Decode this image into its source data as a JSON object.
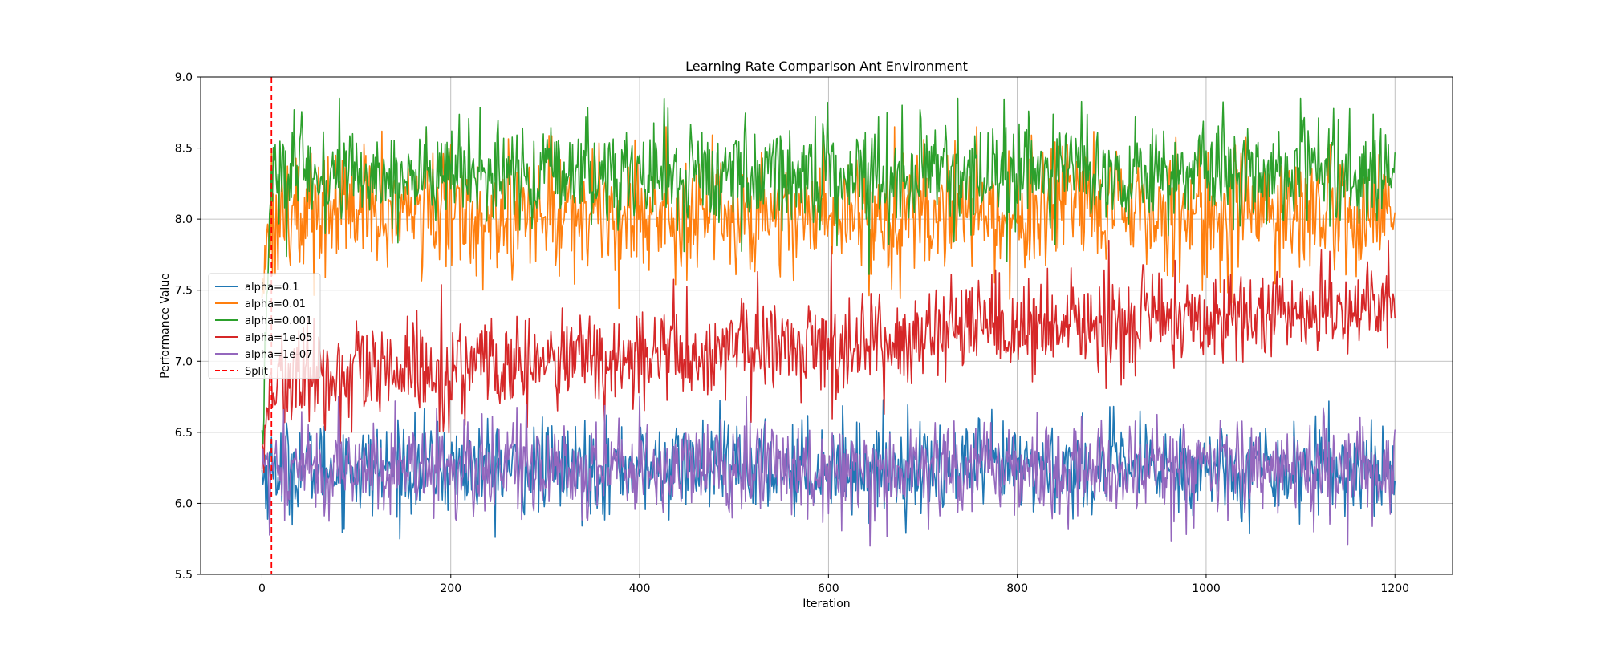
{
  "chart_data": {
    "type": "line",
    "title": "Learning Rate Comparison Ant Environment",
    "xlabel": "Iteration",
    "ylabel": "Performance Value",
    "xlim": [
      -65,
      1261
    ],
    "ylim": [
      5.5,
      9.0
    ],
    "xticks": [
      0,
      200,
      400,
      600,
      800,
      1000,
      1200
    ],
    "xtick_labels": [
      "0",
      "200",
      "400",
      "600",
      "800",
      "1000",
      "1200"
    ],
    "yticks": [
      5.5,
      6.0,
      6.5,
      7.0,
      7.5,
      8.0,
      8.5,
      9.0
    ],
    "ytick_labels": [
      "5.5",
      "6.0",
      "6.5",
      "7.0",
      "7.5",
      "8.0",
      "8.5",
      "9.0"
    ],
    "grid": true,
    "legend_position": "center-left",
    "x_range": [
      0,
      1200
    ],
    "split_x": 10,
    "series": [
      {
        "name": "alpha=0.1",
        "color": "#1f77b4",
        "start": 6.2,
        "mid": 6.25,
        "end": 6.25,
        "noise": 0.16,
        "min": 5.75,
        "max": 6.85
      },
      {
        "name": "alpha=0.01",
        "color": "#ff7f0e",
        "start": 7.6,
        "mid": 8.05,
        "end": 8.05,
        "noise": 0.22,
        "min": 7.2,
        "max": 8.65
      },
      {
        "name": "alpha=0.001",
        "color": "#2ca02c",
        "start": 6.5,
        "mid": 8.3,
        "end": 8.35,
        "noise": 0.18,
        "min": 6.3,
        "max": 8.85
      },
      {
        "name": "alpha=1e-05",
        "color": "#d62728",
        "start": 6.35,
        "mid": 6.85,
        "end": 7.4,
        "noise": 0.18,
        "min": 5.85,
        "max": 7.85
      },
      {
        "name": "alpha=1e-07",
        "color": "#9467bd",
        "start": 6.25,
        "mid": 6.25,
        "end": 6.25,
        "noise": 0.17,
        "min": 5.7,
        "max": 6.75
      }
    ],
    "split": {
      "name": "Split",
      "x": 10,
      "color": "#ff0000"
    }
  }
}
